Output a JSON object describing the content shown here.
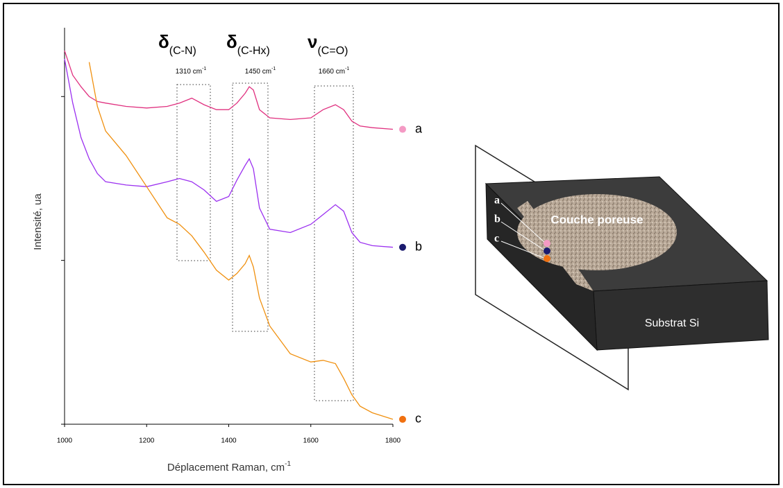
{
  "chart_data": {
    "type": "line",
    "y_label": "Intensité, ua",
    "x_label": "Déplacement Raman, cm",
    "x_label_exponent": "-1",
    "x": [
      1000,
      1020,
      1040,
      1060,
      1080,
      1100,
      1150,
      1200,
      1250,
      1280,
      1310,
      1340,
      1370,
      1400,
      1420,
      1440,
      1450,
      1460,
      1475,
      1500,
      1550,
      1600,
      1630,
      1660,
      1680,
      1700,
      1720,
      1750,
      1800
    ],
    "xlim": [
      1000,
      1800
    ],
    "xticks": [
      1000,
      1200,
      1400,
      1600,
      1800
    ],
    "ylim": [
      0,
      2.42
    ],
    "yticks": [
      0,
      1,
      2
    ],
    "series": [
      {
        "name": "a",
        "color": "#e0307f",
        "marker_color": "#f49ac4",
        "values": [
          2.28,
          2.13,
          2.06,
          2.0,
          1.97,
          1.96,
          1.94,
          1.93,
          1.94,
          1.96,
          1.99,
          1.95,
          1.92,
          1.92,
          1.96,
          2.02,
          2.06,
          2.04,
          1.92,
          1.87,
          1.86,
          1.87,
          1.92,
          1.95,
          1.92,
          1.85,
          1.82,
          1.81,
          1.8
        ]
      },
      {
        "name": "b",
        "color": "#9b30f0",
        "marker_color": "#1a1a6e",
        "values": [
          2.23,
          1.96,
          1.75,
          1.62,
          1.53,
          1.48,
          1.46,
          1.45,
          1.48,
          1.5,
          1.48,
          1.43,
          1.36,
          1.39,
          1.49,
          1.58,
          1.62,
          1.56,
          1.32,
          1.19,
          1.17,
          1.22,
          1.28,
          1.34,
          1.3,
          1.17,
          1.11,
          1.09,
          1.08
        ]
      },
      {
        "name": "c",
        "color": "#f0900f",
        "marker_color": "#f07010",
        "values": [
          null,
          null,
          null,
          2.21,
          1.94,
          1.79,
          1.64,
          1.45,
          1.26,
          1.22,
          1.15,
          1.05,
          0.94,
          0.88,
          0.92,
          0.98,
          1.03,
          0.96,
          0.77,
          0.6,
          0.43,
          0.38,
          0.39,
          0.37,
          0.28,
          0.18,
          0.11,
          0.07,
          0.03
        ]
      }
    ],
    "annotations": [
      {
        "symbol": "δ",
        "subscript": "(C-N)",
        "position": "1310 cm",
        "exponent": "-1"
      },
      {
        "symbol": "δ",
        "subscript": "(C-Hx)",
        "position": "1450 cm",
        "exponent": "-1"
      },
      {
        "symbol": "ν",
        "subscript": "(C=O)",
        "position": "1660 cm",
        "exponent": "-1"
      }
    ]
  },
  "diagram": {
    "points": [
      "a",
      "b",
      "c"
    ],
    "layer_label": "Couche poreuse",
    "substrate_label": "Substrat Si"
  }
}
